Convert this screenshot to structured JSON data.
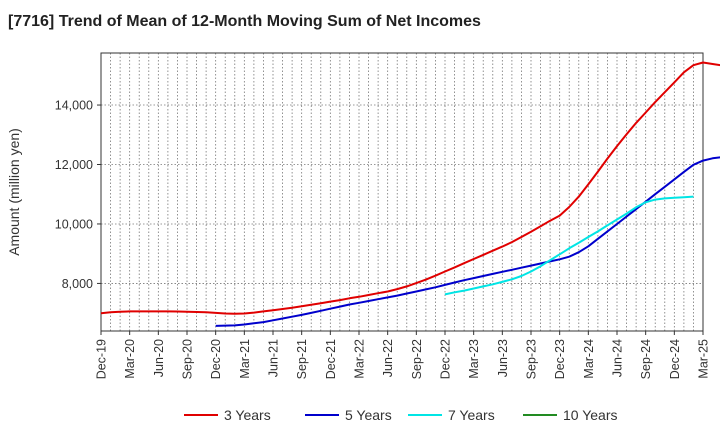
{
  "chart_data": {
    "type": "line",
    "title": "[7716]  Trend of Mean of 12-Month Moving Sum of Net Incomes",
    "ylabel": "Amount (million yen)",
    "xlabel": "",
    "ylim": [
      6400,
      15750
    ],
    "y_ticks": [
      8000,
      10000,
      12000,
      14000
    ],
    "y_tick_labels": [
      "8,000",
      "10,000",
      "12,000",
      "14,000"
    ],
    "x_tick_labels": [
      "Dec-19",
      "Mar-20",
      "Jun-20",
      "Sep-20",
      "Dec-20",
      "Mar-21",
      "Jun-21",
      "Sep-21",
      "Dec-21",
      "Mar-22",
      "Jun-22",
      "Sep-22",
      "Dec-22",
      "Mar-23",
      "Jun-23",
      "Sep-23",
      "Dec-23",
      "Mar-24",
      "Jun-24",
      "Sep-24",
      "Dec-24",
      "Mar-25"
    ],
    "grid": true,
    "legend_position": "bottom",
    "series": [
      {
        "name": "3 Years",
        "color": "#e00000",
        "start_month_index": 0,
        "values": [
          7000,
          7030,
          7050,
          7060,
          7060,
          7060,
          7060,
          7060,
          7055,
          7050,
          7040,
          7030,
          7010,
          6990,
          6980,
          6990,
          7020,
          7060,
          7100,
          7140,
          7180,
          7230,
          7280,
          7330,
          7390,
          7440,
          7500,
          7550,
          7610,
          7670,
          7730,
          7810,
          7900,
          8010,
          8130,
          8260,
          8400,
          8540,
          8680,
          8820,
          8960,
          9100,
          9240,
          9390,
          9560,
          9740,
          9920,
          10110,
          10280,
          10570,
          10920,
          11330,
          11760,
          12200,
          12620,
          13020,
          13400,
          13750,
          14100,
          14430,
          14760,
          15100,
          15340,
          15430,
          15380,
          15330,
          15290,
          15250
        ]
      },
      {
        "name": "5 Years",
        "color": "#0000cc",
        "start_month_index": 12,
        "values": [
          6570,
          6580,
          6590,
          6620,
          6660,
          6700,
          6760,
          6820,
          6880,
          6940,
          7010,
          7080,
          7150,
          7220,
          7290,
          7350,
          7410,
          7470,
          7530,
          7590,
          7660,
          7730,
          7800,
          7870,
          7950,
          8030,
          8110,
          8180,
          8250,
          8320,
          8390,
          8460,
          8530,
          8600,
          8670,
          8740,
          8810,
          8900,
          9050,
          9250,
          9500,
          9750,
          10000,
          10250,
          10500,
          10750,
          11000,
          11250,
          11500,
          11750,
          11990,
          12130,
          12210,
          12250,
          12270,
          12290,
          12310
        ]
      },
      {
        "name": "7 Years",
        "color": "#00e5e5",
        "start_month_index": 36,
        "values": [
          7630,
          7700,
          7760,
          7830,
          7900,
          7970,
          8050,
          8140,
          8250,
          8400,
          8580,
          8780,
          8980,
          9180,
          9370,
          9560,
          9750,
          9950,
          10150,
          10350,
          10560,
          10730,
          10820,
          10860,
          10880,
          10900,
          10920
        ]
      },
      {
        "name": "10 Years",
        "color": "#228b22",
        "start_month_index": 0,
        "values": []
      }
    ]
  }
}
